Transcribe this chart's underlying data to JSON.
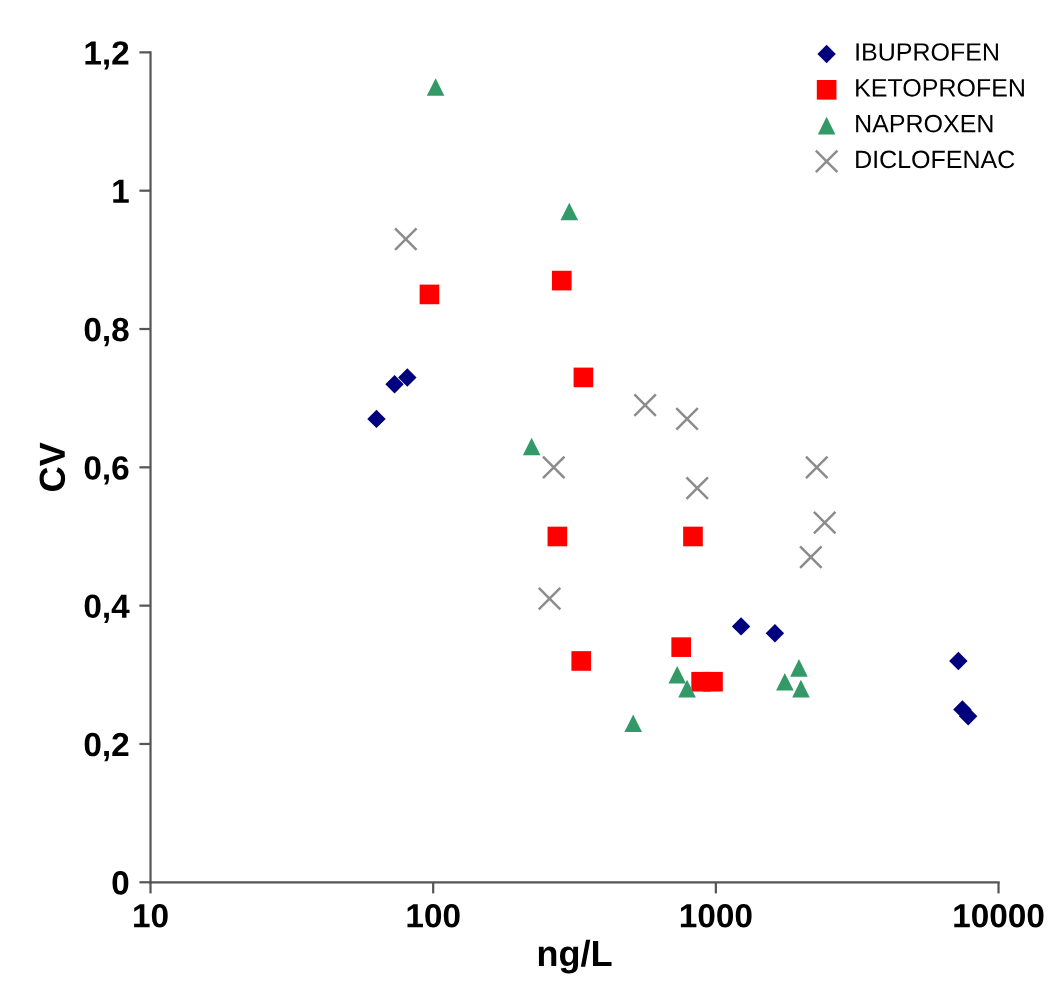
{
  "chart_data": {
    "type": "scatter",
    "xlabel": "ng/L",
    "ylabel": "CV",
    "log": "x",
    "grid": false,
    "legend": "top right",
    "xlim": [
      10,
      10000
    ],
    "xticks": [
      10,
      100,
      1000,
      10000
    ],
    "ylim": [
      0,
      1.2
    ],
    "yticks": [
      {
        "value": 0,
        "label": "0"
      },
      {
        "value": 0.2,
        "label": "0,2"
      },
      {
        "value": 0.4,
        "label": "0,4"
      },
      {
        "value": 0.6,
        "label": "0,6"
      },
      {
        "value": 0.8,
        "label": "0,8"
      },
      {
        "value": 1,
        "label": "1"
      },
      {
        "value": 1.2,
        "label": "1,2"
      }
    ],
    "series": [
      {
        "name": "IBUPROFEN",
        "color": "#00007f",
        "marker": "diamond",
        "x": [
          63,
          73,
          81,
          1228,
          1618,
          7210,
          7450,
          7810
        ],
        "values": [
          0.67,
          0.72,
          0.73,
          0.37,
          0.36,
          0.32,
          0.25,
          0.24
        ]
      },
      {
        "name": "KETOPROFEN",
        "color": "#ff0000",
        "marker": "square",
        "x": [
          97,
          285,
          340,
          275,
          830,
          334,
          754,
          887,
          977
        ],
        "values": [
          0.85,
          0.87,
          0.73,
          0.5,
          0.5,
          0.32,
          0.34,
          0.29,
          0.29
        ]
      },
      {
        "name": "NAPROXEN",
        "color": "#339966",
        "marker": "triangle",
        "x": [
          102,
          303,
          223,
          510,
          730,
          791,
          1754,
          1968,
          2000
        ],
        "values": [
          1.15,
          0.97,
          0.63,
          0.23,
          0.3,
          0.28,
          0.29,
          0.31,
          0.28
        ]
      },
      {
        "name": "DICLOFENAC",
        "color": "#8c8c8c",
        "marker": "cross",
        "x": [
          80,
          562,
          791,
          267,
          859,
          2275,
          2427,
          2168,
          258
        ],
        "values": [
          0.93,
          0.69,
          0.67,
          0.6,
          0.57,
          0.6,
          0.52,
          0.47,
          0.41
        ]
      }
    ]
  }
}
